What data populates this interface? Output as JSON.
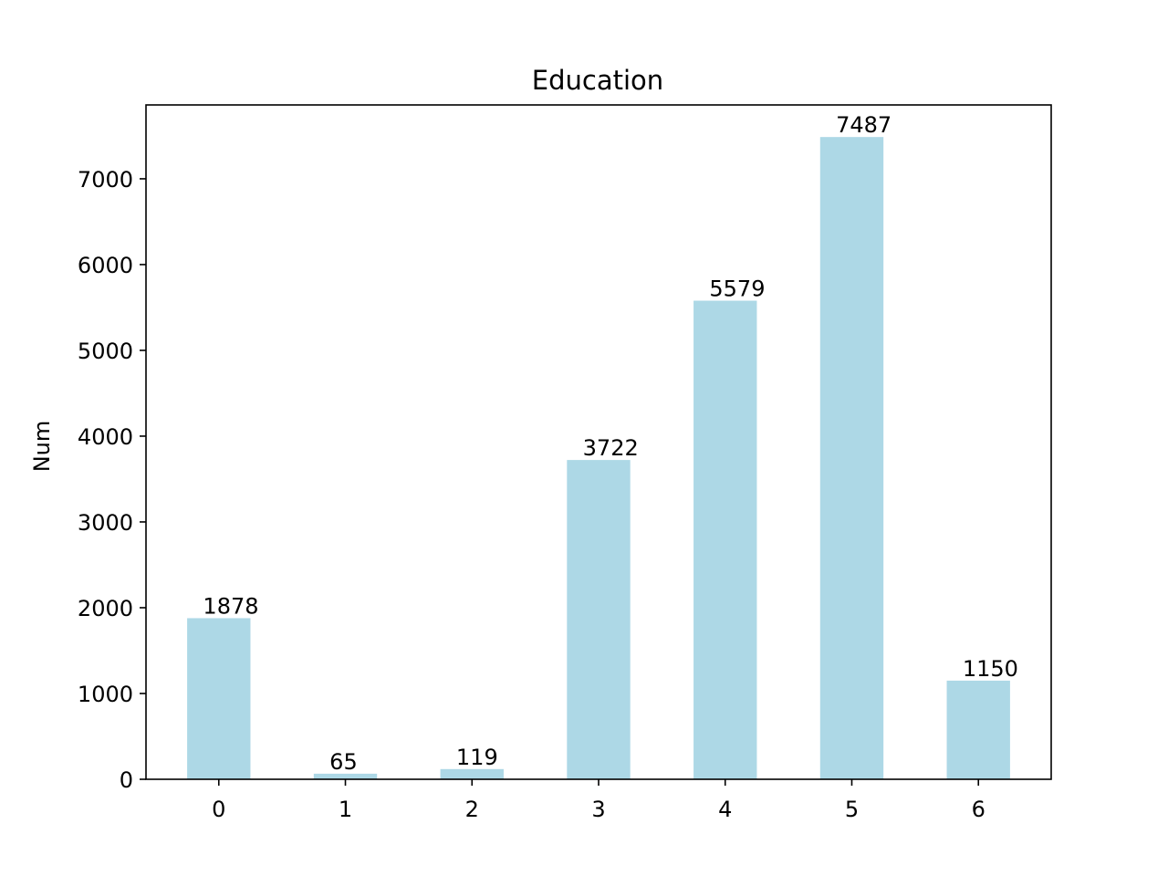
{
  "chart_data": {
    "type": "bar",
    "title": "Education",
    "xlabel": "",
    "ylabel": "Num",
    "categories": [
      "0",
      "1",
      "2",
      "3",
      "4",
      "5",
      "6"
    ],
    "values": [
      1878,
      65,
      119,
      3722,
      5579,
      7487,
      1150
    ],
    "data_labels": [
      "1878",
      "65",
      "119",
      "3722",
      "5579",
      "7487",
      "1150"
    ],
    "y_ticks": [
      0,
      1000,
      2000,
      3000,
      4000,
      5000,
      6000,
      7000
    ],
    "y_tick_labels": [
      "0",
      "1000",
      "2000",
      "3000",
      "4000",
      "5000",
      "6000",
      "7000"
    ],
    "ylim": [
      0,
      7861
    ],
    "grid": false,
    "legend": "none",
    "bar_color": "#add8e6"
  }
}
